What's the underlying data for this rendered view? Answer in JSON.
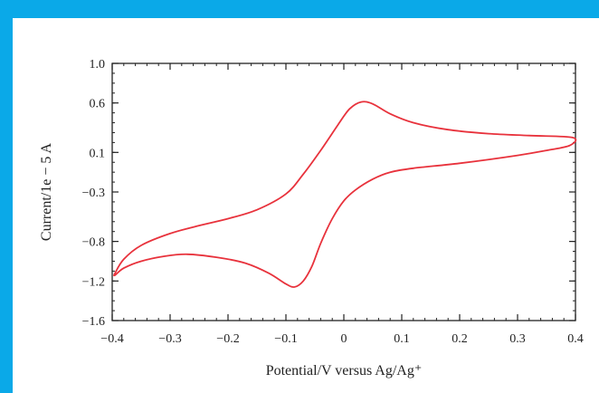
{
  "colors": {
    "frame": "#0aa9e8",
    "curve": "#e8323c",
    "axes": "#222222"
  },
  "chart_data": {
    "type": "line",
    "title": "",
    "xlabel": "Potential/V versus Ag/Ag⁺",
    "ylabel": "Current/1e − 5 A",
    "xlim": [
      -0.4,
      0.4
    ],
    "ylim": [
      -1.6,
      1.0
    ],
    "xticks": [
      -0.4,
      -0.3,
      -0.2,
      -0.1,
      0,
      0.1,
      0.2,
      0.3,
      0.4
    ],
    "xtick_labels": [
      "−0.4",
      "−0.3",
      "−0.2",
      "−0.1",
      "0",
      "0.1",
      "0.2",
      "0.3",
      "0.4"
    ],
    "yticks": [
      1.0,
      0.6,
      0.1,
      -0.3,
      -0.8,
      -1.2,
      -1.6
    ],
    "ytick_labels": [
      "1.0",
      "0.6",
      "0.1",
      "−0.3",
      "−0.8",
      "−1.2",
      "−1.6"
    ],
    "grid": false,
    "series": [
      {
        "values_note": "",
        "x": [
          -0.395,
          -0.38,
          -0.35,
          -0.3,
          -0.25,
          -0.2,
          -0.15,
          -0.1,
          -0.07,
          -0.04,
          -0.01,
          0.01,
          0.03,
          0.05,
          0.08,
          0.12,
          0.18,
          0.25,
          0.32,
          0.395,
          0.39,
          0.35,
          0.3,
          0.2,
          0.12,
          0.08,
          0.05,
          0.02,
          0.0,
          -0.02,
          -0.04,
          -0.055,
          -0.07,
          -0.085,
          -0.1,
          -0.13,
          -0.17,
          -0.22,
          -0.27,
          -0.31,
          -0.35,
          -0.38,
          -0.395
        ],
        "y": [
          -1.12,
          -0.98,
          -0.84,
          -0.72,
          -0.64,
          -0.57,
          -0.48,
          -0.32,
          -0.12,
          0.12,
          0.38,
          0.54,
          0.61,
          0.59,
          0.49,
          0.4,
          0.33,
          0.29,
          0.27,
          0.25,
          0.17,
          0.12,
          0.07,
          -0.01,
          -0.06,
          -0.1,
          -0.17,
          -0.28,
          -0.39,
          -0.57,
          -0.82,
          -1.05,
          -1.2,
          -1.26,
          -1.23,
          -1.12,
          -1.02,
          -0.96,
          -0.93,
          -0.95,
          -1.0,
          -1.07,
          -1.14
        ]
      }
    ]
  }
}
